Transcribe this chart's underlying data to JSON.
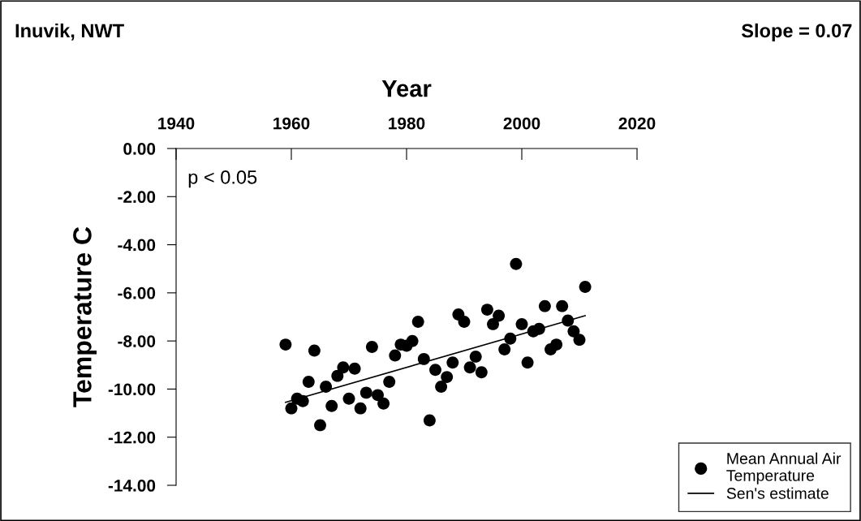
{
  "chart_data": {
    "type": "scatter",
    "title": "Inuvik, NWT",
    "xlabel": "Year",
    "ylabel": "Temperature C",
    "annotations": [
      "Slope = 0.07",
      "p < 0.05"
    ],
    "x": [
      1959,
      1960,
      1961,
      1962,
      1963,
      1964,
      1965,
      1966,
      1967,
      1968,
      1969,
      1970,
      1971,
      1972,
      1973,
      1974,
      1975,
      1976,
      1977,
      1978,
      1979,
      1980,
      1981,
      1982,
      1983,
      1984,
      1985,
      1986,
      1987,
      1988,
      1989,
      1990,
      1991,
      1992,
      1993,
      1994,
      1995,
      1996,
      1997,
      1998,
      1999,
      2000,
      2001,
      2002,
      2003,
      2004,
      2005,
      2006,
      2007,
      2008,
      2009,
      2010,
      2011
    ],
    "series": [
      {
        "name": "Mean Annual Air\nTemperature",
        "color": "#000000",
        "marker": "circle",
        "values": [
          -8.15,
          -10.8,
          -10.4,
          -10.5,
          -9.7,
          -8.4,
          -11.5,
          -9.9,
          -10.7,
          -9.45,
          -9.1,
          -10.4,
          -9.15,
          -10.8,
          -10.15,
          -8.25,
          -10.25,
          -10.6,
          -9.7,
          -8.6,
          -8.15,
          -8.2,
          -8.0,
          -7.2,
          -8.75,
          -11.3,
          -9.2,
          -9.9,
          -9.5,
          -8.9,
          -6.9,
          -7.2,
          -9.1,
          -8.65,
          -9.3,
          -6.7,
          -7.3,
          -6.95,
          -8.35,
          -7.9,
          -4.8,
          -7.3,
          -8.9,
          -7.6,
          -7.5,
          -6.55,
          -8.35,
          -8.15,
          -6.55,
          -7.15,
          -7.6,
          -7.95,
          -5.75
        ]
      },
      {
        "name": "Sen's estimate",
        "type": "line",
        "color": "#000000",
        "marker": "none",
        "line_style": "solid",
        "x": [
          1959,
          2011
        ],
        "values": [
          -10.55,
          -6.95
        ]
      }
    ],
    "xlim": [
      1940,
      2020
    ],
    "xticks": [
      1940,
      1960,
      1980,
      2000,
      2020
    ],
    "ylim": [
      -14,
      0
    ],
    "yticks": [
      {
        "value": 0,
        "label": "0.00"
      },
      {
        "value": -2,
        "label": "-2.00"
      },
      {
        "value": -4,
        "label": "-4.00"
      },
      {
        "value": -6,
        "label": "-6.00"
      },
      {
        "value": -8,
        "label": "-8.00"
      },
      {
        "value": -10,
        "label": "-10.00"
      },
      {
        "value": -12,
        "label": "-12.00"
      },
      {
        "value": -14,
        "label": "-14.00"
      }
    ],
    "grid": false,
    "legend": "bottom right"
  }
}
